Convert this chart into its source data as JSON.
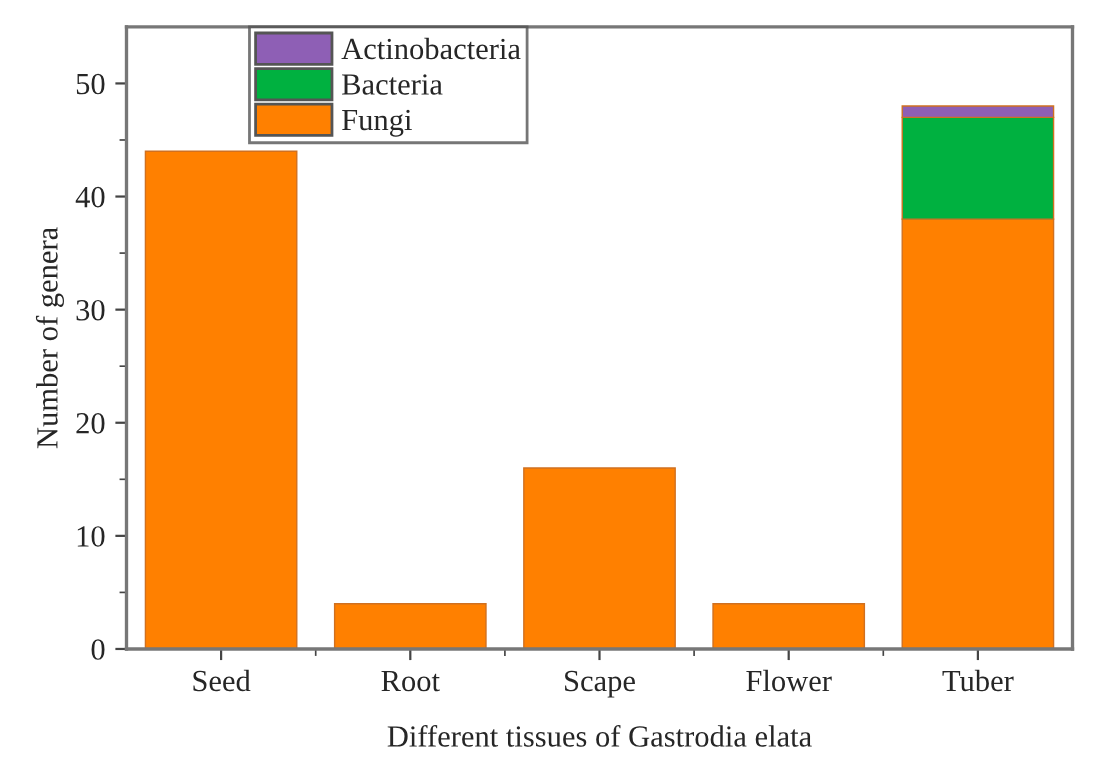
{
  "chart_data": {
    "type": "bar",
    "stacked": true,
    "xlabel": "Different tissues of Gastrodia elata",
    "ylabel": "Number of genera",
    "categories": [
      "Seed",
      "Root",
      "Scape",
      "Flower",
      "Tuber"
    ],
    "series": [
      {
        "name": "Fungi",
        "color": "#ff8000",
        "values": [
          44,
          4,
          16,
          4,
          38
        ]
      },
      {
        "name": "Bacteria",
        "color": "#00b140",
        "values": [
          0,
          0,
          0,
          0,
          9
        ]
      },
      {
        "name": "Actinobacteria",
        "color": "#8e5fb5",
        "values": [
          0,
          0,
          0,
          0,
          1
        ]
      }
    ],
    "ylim": [
      0,
      55
    ],
    "yticks": [
      0,
      10,
      20,
      30,
      40,
      50
    ],
    "grid": false,
    "legend": "top left"
  }
}
